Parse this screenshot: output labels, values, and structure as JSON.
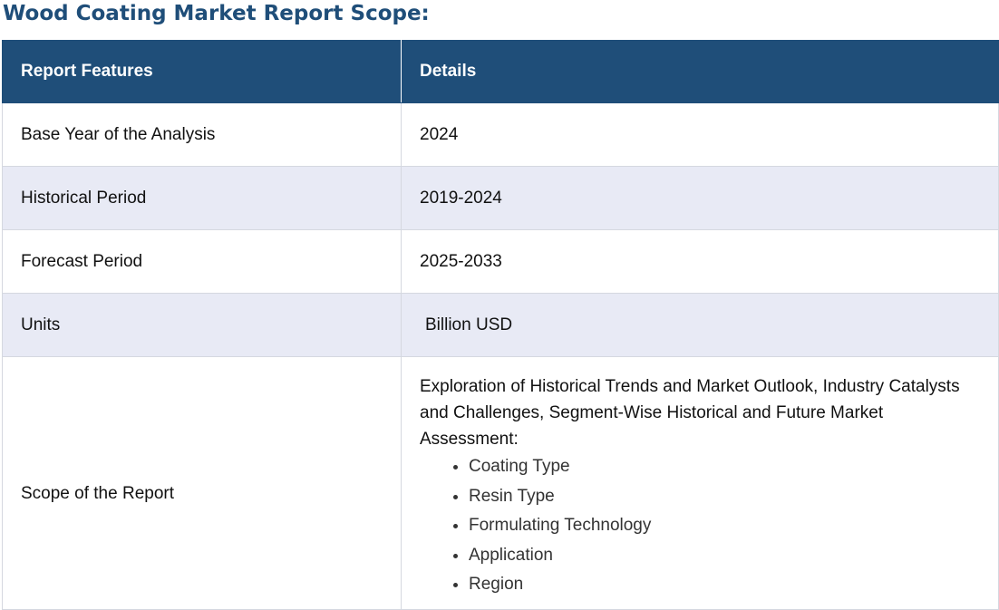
{
  "page_title": "Wood Coating Market Report Scope:",
  "table": {
    "headers": {
      "feature": "Report Features",
      "details": "Details"
    },
    "rows": [
      {
        "feature": "Base Year of the Analysis",
        "details": "2024"
      },
      {
        "feature": "Historical Period",
        "details": "2019-2024"
      },
      {
        "feature": "Forecast Period",
        "details": "2025-2033"
      },
      {
        "feature": "Units",
        "details": "Billion USD"
      },
      {
        "feature": "Scope of the Report",
        "details": "Exploration of Historical Trends and Market Outlook, Industry Catalysts and Challenges, Segment-Wise Historical and Future Market Assessment:",
        "items": [
          "Coating Type",
          "Resin Type",
          "Formulating Technology",
          "Application",
          "Region"
        ]
      }
    ]
  },
  "colors": {
    "header_background": "#1f4e79",
    "title_color": "#1f4e79",
    "alt_row_background": "#e8eaf5"
  }
}
